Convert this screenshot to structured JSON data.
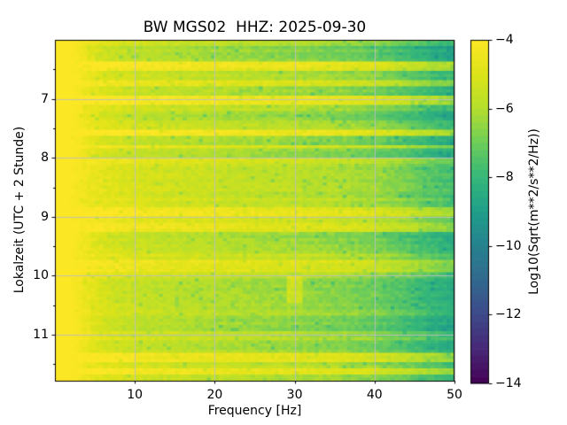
{
  "figure": {
    "background": "#ffffff"
  },
  "chart_data": {
    "type": "heatmap",
    "title": "BW MGS02  HHZ: 2025-09-30",
    "station": {
      "network": "BW",
      "station": "MGS02",
      "channel": "HHZ",
      "date": "2025-09-30"
    },
    "xlabel": "Frequency [Hz]",
    "ylabel": "Lokalzeit (UTC + 2 Stunde)",
    "x_range": [
      0,
      50
    ],
    "y_range": [
      6.0,
      11.78
    ],
    "xticks": [
      10,
      20,
      30,
      40,
      50
    ],
    "yticks": [
      7,
      8,
      9,
      10,
      11
    ],
    "grid": true,
    "grid_color": "rgba(190,190,196,0.9)",
    "colorbar": {
      "label": "Log10(Sqrt(m**2/s**2/Hz))",
      "ticks": [
        -4,
        -6,
        -8,
        -10,
        -12,
        -14
      ],
      "vmin": -14,
      "vmax": -4,
      "colormap": "viridis",
      "levels": 50
    },
    "colormap_stops": [
      [
        0.0,
        "#440154"
      ],
      [
        0.1,
        "#482878"
      ],
      [
        0.2,
        "#3e4989"
      ],
      [
        0.3,
        "#31688e"
      ],
      [
        0.4,
        "#26828e"
      ],
      [
        0.5,
        "#1f9e89"
      ],
      [
        0.6,
        "#35b779"
      ],
      [
        0.7,
        "#6dcd59"
      ],
      [
        0.8,
        "#b4de2c"
      ],
      [
        0.9,
        "#dde318"
      ],
      [
        1.0,
        "#fde725"
      ]
    ],
    "freq_profile": [
      [
        0,
        -4.0
      ],
      [
        2,
        -4.05
      ],
      [
        5,
        -4.5
      ],
      [
        8,
        -4.75
      ],
      [
        10,
        -4.9
      ],
      [
        15,
        -5.1
      ],
      [
        20,
        -5.25
      ],
      [
        25,
        -5.4
      ],
      [
        30,
        -5.5
      ],
      [
        35,
        -5.7
      ],
      [
        40,
        -6.0
      ],
      [
        44,
        -6.5
      ],
      [
        47,
        -7.0
      ],
      [
        50,
        -7.4
      ]
    ],
    "time_bands": [
      [
        6.0,
        6.08,
        -0.3
      ],
      [
        6.08,
        6.38,
        -0.75
      ],
      [
        6.38,
        6.52,
        0.55
      ],
      [
        6.52,
        6.7,
        -0.35
      ],
      [
        6.7,
        6.78,
        0.25
      ],
      [
        6.78,
        6.95,
        -0.5
      ],
      [
        6.95,
        7.08,
        0.6
      ],
      [
        7.08,
        7.22,
        -0.3
      ],
      [
        7.22,
        7.35,
        -0.65
      ],
      [
        7.35,
        7.5,
        -0.25
      ],
      [
        7.5,
        7.64,
        0.6
      ],
      [
        7.64,
        7.78,
        -0.6
      ],
      [
        7.78,
        7.86,
        0.3
      ],
      [
        7.86,
        7.98,
        -0.6
      ],
      [
        7.98,
        8.12,
        0.15
      ],
      [
        8.12,
        8.55,
        -0.15
      ],
      [
        8.55,
        8.7,
        -0.35
      ],
      [
        8.7,
        8.85,
        -0.1
      ],
      [
        8.85,
        8.97,
        0.55
      ],
      [
        8.97,
        9.12,
        0.1
      ],
      [
        9.12,
        9.25,
        0.35
      ],
      [
        9.25,
        9.45,
        -0.55
      ],
      [
        9.45,
        9.62,
        -0.35
      ],
      [
        9.62,
        9.75,
        -0.1
      ],
      [
        9.75,
        9.92,
        0.35
      ],
      [
        9.92,
        10.05,
        -0.2
      ],
      [
        10.05,
        10.45,
        -0.6
      ],
      [
        10.45,
        10.7,
        -0.45
      ],
      [
        10.7,
        10.95,
        -0.7
      ],
      [
        10.95,
        11.08,
        -0.3
      ],
      [
        11.08,
        11.3,
        -0.55
      ],
      [
        11.3,
        11.45,
        0.5
      ],
      [
        11.45,
        11.55,
        -0.2
      ],
      [
        11.55,
        11.68,
        0.45
      ],
      [
        11.68,
        11.78,
        -0.45
      ]
    ],
    "events": [
      {
        "freq": 29.8,
        "width": 1.0,
        "t_from": 10.0,
        "t_to": 10.45,
        "offset": 1.0
      }
    ],
    "noise_amp": 0.28
  }
}
